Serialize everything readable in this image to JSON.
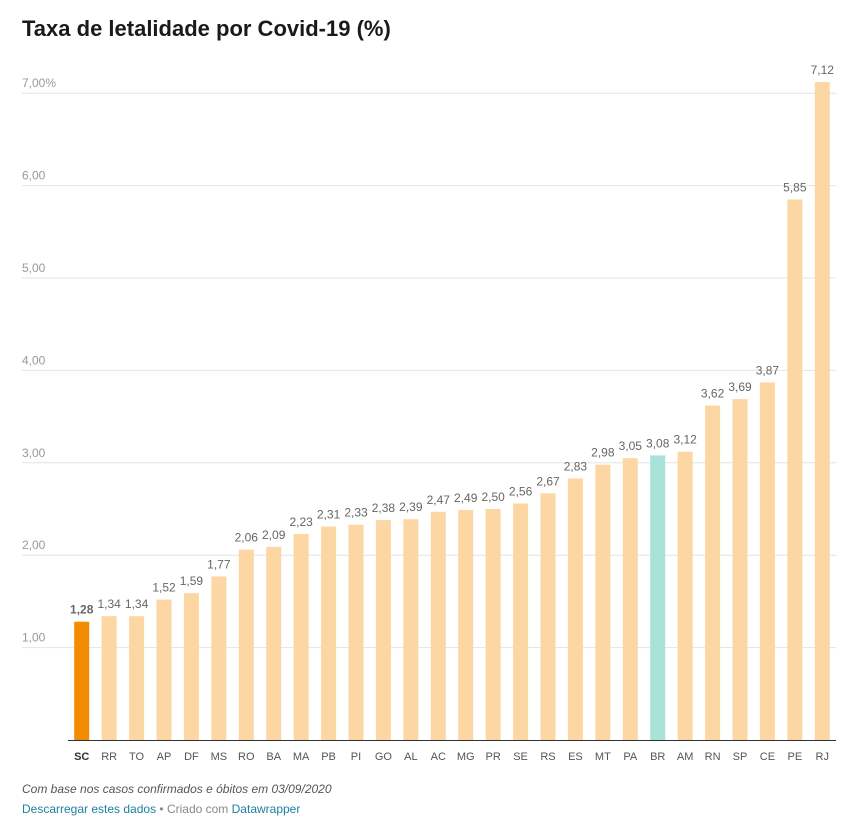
{
  "chart_data": {
    "type": "bar",
    "title": "Taxa de letalidade por Covid-19 (%)",
    "xlabel": "",
    "ylabel": "",
    "ylim": [
      0,
      7.4
    ],
    "y_ticks": [
      {
        "value": 1,
        "label": "1,00"
      },
      {
        "value": 2,
        "label": "2,00"
      },
      {
        "value": 3,
        "label": "3,00"
      },
      {
        "value": 4,
        "label": "4,00"
      },
      {
        "value": 5,
        "label": "5,00"
      },
      {
        "value": 6,
        "label": "6,00"
      },
      {
        "value": 7,
        "label": "7,00%"
      }
    ],
    "grid": true,
    "categories": [
      "SC",
      "RR",
      "TO",
      "AP",
      "DF",
      "MS",
      "RO",
      "BA",
      "MA",
      "PB",
      "PI",
      "GO",
      "AL",
      "AC",
      "MG",
      "PR",
      "SE",
      "RS",
      "ES",
      "MT",
      "PA",
      "BR",
      "AM",
      "RN",
      "SP",
      "CE",
      "PE",
      "RJ"
    ],
    "values": [
      1.28,
      1.34,
      1.34,
      1.52,
      1.59,
      1.77,
      2.06,
      2.09,
      2.23,
      2.31,
      2.33,
      2.38,
      2.39,
      2.47,
      2.49,
      2.5,
      2.56,
      2.67,
      2.83,
      2.98,
      3.05,
      3.08,
      3.12,
      3.62,
      3.69,
      3.87,
      5.85,
      7.12
    ],
    "value_labels": [
      "1,28",
      "1,34",
      "1,34",
      "1,52",
      "1,59",
      "1,77",
      "2,06",
      "2,09",
      "2,23",
      "2,31",
      "2,33",
      "2,38",
      "2,39",
      "2,47",
      "2,49",
      "2,50",
      "2,56",
      "2,67",
      "2,83",
      "2,98",
      "3,05",
      "3,08",
      "3,12",
      "3,62",
      "3,69",
      "3,87",
      "5,85",
      "7,12"
    ],
    "highlight": {
      "SC": "#f28c00",
      "BR": "#a8e2d9"
    },
    "colors": {
      "default": "#fcd7a4",
      "grid": "#e4e4e4",
      "axis": "#333333",
      "tick_label": "#999999",
      "value_label": "#666666"
    }
  },
  "footer": {
    "note": "Com base nos casos confirmados e óbitos em 03/09/2020",
    "download_link": "Descarregar estes dados",
    "separator": " • Criado com ",
    "credit_link": "Datawrapper"
  }
}
